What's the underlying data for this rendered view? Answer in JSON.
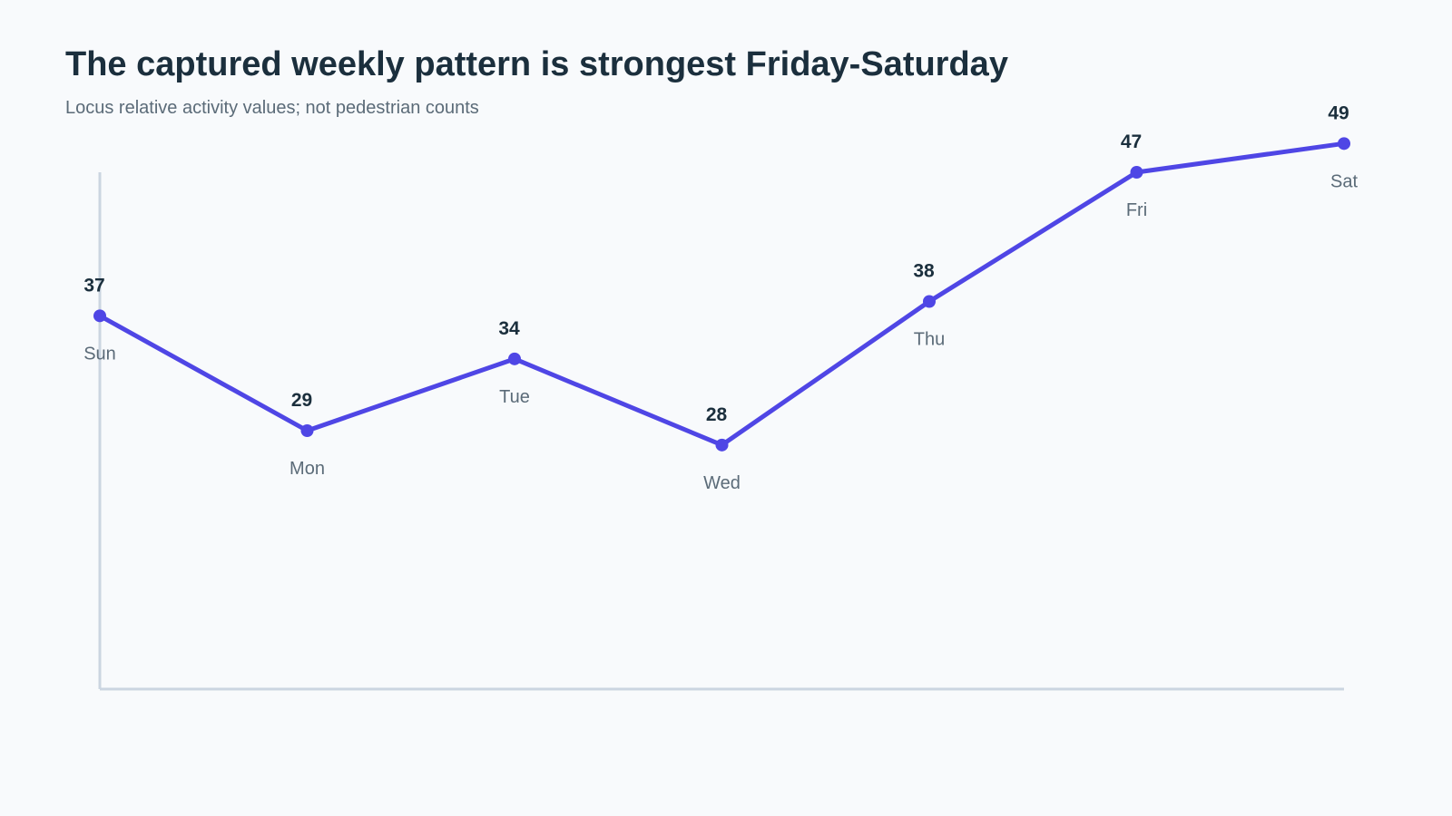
{
  "title": "The captured weekly pattern is strongest Friday-Saturday",
  "subtitle": "Locus relative activity values; not pedestrian counts",
  "colors": {
    "line": "#4f46e5",
    "axis": "#cbd5e1",
    "title": "#1b2f3d",
    "muted": "#5b6b78",
    "background": "#f8fafc"
  },
  "chart_data": {
    "type": "line",
    "title": "The captured weekly pattern is strongest Friday-Saturday",
    "subtitle": "Locus relative activity values; not pedestrian counts",
    "xlabel": "",
    "ylabel": "",
    "categories": [
      "Sun",
      "Mon",
      "Tue",
      "Wed",
      "Thu",
      "Fri",
      "Sat"
    ],
    "series": [
      {
        "values": [
          37,
          29,
          34,
          28,
          38,
          47,
          49
        ]
      }
    ],
    "ylim": [
      11,
      47
    ],
    "grid": false,
    "legend": "none",
    "data_labels": true
  }
}
